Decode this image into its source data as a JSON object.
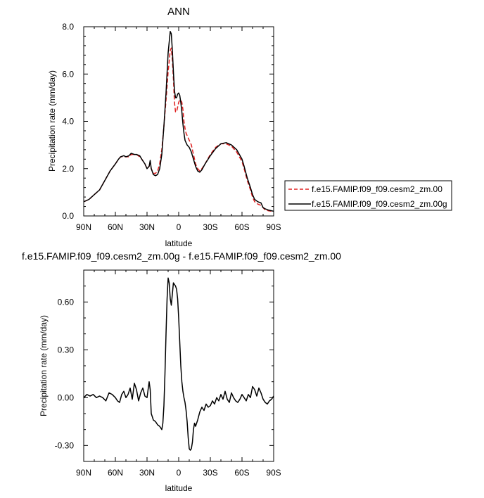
{
  "chart_data": [
    {
      "type": "line",
      "title": "ANN",
      "xlabel": "latitude",
      "ylabel": "Precipitation rate (mm/day)",
      "xlim": [
        -90,
        90
      ],
      "ylim": [
        0,
        8
      ],
      "x_ticks": [
        -90,
        -60,
        -30,
        0,
        30,
        60,
        90
      ],
      "x_tick_labels": [
        "90N",
        "60N",
        "30N",
        "0",
        "30S",
        "60S",
        "90S"
      ],
      "y_ticks": [
        0,
        2,
        4,
        6,
        8
      ],
      "y_tick_labels": [
        "0.0",
        "2.0",
        "4.0",
        "6.0",
        "8.0"
      ],
      "grid": false,
      "legend_position": "right",
      "series": [
        {
          "name": "f.e15.FAMIP.f09_f09.cesm2_zm.00",
          "color": "#e02020",
          "style": "dashed",
          "x": [
            -90,
            -85,
            -80,
            -75,
            -70,
            -65,
            -60,
            -57,
            -55,
            -52,
            -50,
            -47,
            -45,
            -42,
            -40,
            -37,
            -35,
            -32,
            -30,
            -28,
            -27,
            -26,
            -24,
            -22,
            -20,
            -18,
            -16,
            -14,
            -12,
            -10,
            -8,
            -7,
            -6,
            -5,
            -4,
            -3,
            -2,
            -1,
            0,
            1,
            2,
            3,
            4,
            5,
            6,
            7,
            8,
            10,
            12,
            14,
            16,
            18,
            20,
            22,
            25,
            30,
            35,
            40,
            45,
            50,
            55,
            60,
            62,
            65,
            68,
            70,
            72,
            75,
            78,
            80,
            82,
            85,
            88,
            90
          ],
          "y": [
            0.6,
            0.7,
            0.9,
            1.1,
            1.5,
            1.9,
            2.2,
            2.4,
            2.5,
            2.5,
            2.5,
            2.5,
            2.6,
            2.6,
            2.6,
            2.5,
            2.4,
            2.2,
            2.0,
            2.1,
            2.3,
            2.0,
            1.8,
            1.8,
            1.9,
            2.2,
            2.8,
            3.8,
            4.9,
            6.1,
            7.0,
            7.1,
            6.6,
            5.8,
            4.8,
            4.4,
            4.4,
            4.6,
            4.8,
            4.9,
            4.9,
            4.8,
            4.5,
            4.0,
            3.7,
            3.5,
            3.4,
            3.2,
            3.0,
            2.6,
            2.2,
            2.0,
            1.9,
            2.0,
            2.2,
            2.6,
            2.9,
            3.05,
            3.05,
            2.95,
            2.7,
            2.3,
            2.0,
            1.5,
            1.1,
            0.8,
            0.6,
            0.5,
            0.45,
            0.35,
            0.25,
            0.22,
            0.2,
            0.2
          ]
        },
        {
          "name": "f.e15.FAMIP.f09_f09.cesm2_zm.00g",
          "color": "#000000",
          "style": "solid",
          "x": [
            -90,
            -85,
            -80,
            -75,
            -70,
            -65,
            -60,
            -57,
            -55,
            -52,
            -50,
            -47,
            -45,
            -42,
            -40,
            -37,
            -35,
            -32,
            -30,
            -28,
            -27,
            -26,
            -24,
            -22,
            -20,
            -18,
            -16,
            -14,
            -12,
            -10,
            -8,
            -7,
            -6,
            -5,
            -4,
            -3,
            -2,
            -1,
            0,
            1,
            2,
            3,
            4,
            5,
            6,
            7,
            8,
            10,
            12,
            14,
            16,
            18,
            20,
            22,
            25,
            30,
            35,
            40,
            45,
            50,
            55,
            60,
            62,
            65,
            68,
            70,
            72,
            75,
            78,
            80,
            82,
            85,
            88,
            90
          ],
          "y": [
            0.6,
            0.7,
            0.9,
            1.1,
            1.5,
            1.9,
            2.2,
            2.4,
            2.5,
            2.55,
            2.5,
            2.55,
            2.65,
            2.6,
            2.6,
            2.55,
            2.4,
            2.2,
            2.0,
            2.1,
            2.35,
            2.0,
            1.75,
            1.7,
            1.75,
            2.0,
            2.6,
            3.8,
            5.2,
            6.9,
            7.8,
            7.7,
            7.0,
            6.1,
            5.3,
            5.0,
            5.0,
            5.15,
            5.2,
            5.1,
            4.8,
            4.4,
            3.9,
            3.5,
            3.2,
            3.1,
            3.0,
            2.9,
            2.7,
            2.4,
            2.1,
            1.9,
            1.85,
            1.95,
            2.2,
            2.55,
            2.85,
            3.05,
            3.1,
            3.0,
            2.8,
            2.4,
            2.1,
            1.6,
            1.2,
            0.9,
            0.7,
            0.6,
            0.55,
            0.35,
            0.3,
            0.25,
            0.22,
            0.2
          ]
        }
      ]
    },
    {
      "type": "line",
      "title": "f.e15.FAMIP.f09_f09.cesm2_zm.00g - f.e15.FAMIP.f09_f09.cesm2_zm.00",
      "xlabel": "latitude",
      "ylabel": "Precipitation rate (mm/day)",
      "xlim": [
        -90,
        90
      ],
      "ylim": [
        -0.4,
        0.8
      ],
      "x_ticks": [
        -90,
        -60,
        -30,
        0,
        30,
        60,
        90
      ],
      "x_tick_labels": [
        "90N",
        "60N",
        "30N",
        "0",
        "30S",
        "60S",
        "90S"
      ],
      "y_ticks": [
        -0.3,
        0,
        0.3,
        0.6
      ],
      "y_tick_labels": [
        "-0.30",
        "0.00",
        "0.30",
        "0.60"
      ],
      "grid": false,
      "series": [
        {
          "color": "#000000",
          "style": "solid",
          "x": [
            -90,
            -87,
            -84,
            -81,
            -78,
            -75,
            -72,
            -69,
            -66,
            -63,
            -60,
            -58,
            -56,
            -54,
            -52,
            -50,
            -48,
            -46,
            -44,
            -42,
            -40,
            -38,
            -36,
            -34,
            -32,
            -30,
            -29,
            -28,
            -27,
            -26,
            -25,
            -24,
            -22,
            -20,
            -18,
            -16,
            -15,
            -14,
            -13,
            -12,
            -11,
            -10,
            -9,
            -8,
            -7,
            -6,
            -5,
            -4,
            -3,
            -2,
            -1,
            0,
            1,
            2,
            3,
            4,
            5,
            6,
            7,
            8,
            9,
            10,
            11,
            12,
            13,
            14,
            15,
            16,
            18,
            20,
            22,
            24,
            26,
            28,
            30,
            32,
            34,
            36,
            38,
            40,
            42,
            44,
            46,
            48,
            50,
            52,
            54,
            56,
            58,
            60,
            62,
            64,
            66,
            68,
            70,
            72,
            74,
            76,
            78,
            80,
            82,
            84,
            86,
            88,
            90
          ],
          "y": [
            0.0,
            0.02,
            0.01,
            0.02,
            0.0,
            0.01,
            0.0,
            -0.02,
            0.03,
            0.02,
            0.0,
            -0.02,
            -0.03,
            0.02,
            0.04,
            0.0,
            0.02,
            0.06,
            -0.01,
            0.09,
            0.05,
            -0.02,
            0.03,
            0.06,
            0.01,
            0.0,
            0.05,
            0.1,
            0.05,
            -0.1,
            -0.12,
            -0.14,
            -0.15,
            -0.17,
            -0.18,
            -0.2,
            -0.16,
            -0.05,
            0.15,
            0.4,
            0.62,
            0.75,
            0.72,
            0.62,
            0.58,
            0.65,
            0.72,
            0.71,
            0.7,
            0.68,
            0.62,
            0.5,
            0.35,
            0.2,
            0.1,
            0.04,
            0.0,
            -0.03,
            -0.08,
            -0.15,
            -0.25,
            -0.32,
            -0.33,
            -0.32,
            -0.28,
            -0.2,
            -0.16,
            -0.18,
            -0.14,
            -0.09,
            -0.06,
            -0.08,
            -0.04,
            -0.06,
            -0.05,
            -0.02,
            -0.04,
            0.0,
            -0.02,
            0.02,
            -0.01,
            0.04,
            -0.01,
            -0.03,
            0.03,
            0.0,
            -0.02,
            -0.03,
            -0.01,
            0.02,
            0.0,
            -0.02,
            0.02,
            0.0,
            0.07,
            0.05,
            0.01,
            0.06,
            0.03,
            -0.01,
            -0.03,
            -0.04,
            -0.02,
            -0.01,
            0.01
          ]
        }
      ]
    }
  ]
}
